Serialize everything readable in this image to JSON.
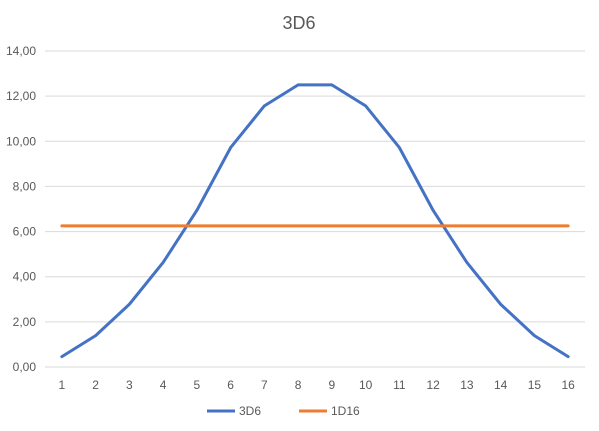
{
  "chart_data": {
    "type": "line",
    "title": "3D6",
    "xlabel": "",
    "ylabel": "",
    "categories": [
      "1",
      "2",
      "3",
      "4",
      "5",
      "6",
      "7",
      "8",
      "9",
      "10",
      "11",
      "12",
      "13",
      "14",
      "15",
      "16"
    ],
    "ylim": [
      0,
      14
    ],
    "yticks": [
      "0,00",
      "2,00",
      "4,00",
      "6,00",
      "8,00",
      "10,00",
      "12,00",
      "14,00"
    ],
    "grid": true,
    "legend_position": "bottom",
    "series": [
      {
        "name": "3D6",
        "color": "#4472C4",
        "values": [
          0.46,
          1.39,
          2.78,
          4.63,
          6.94,
          9.72,
          11.57,
          12.5,
          12.5,
          11.57,
          9.72,
          6.94,
          4.63,
          2.78,
          1.39,
          0.46
        ]
      },
      {
        "name": "1D16",
        "color": "#ED7D31",
        "values": [
          6.25,
          6.25,
          6.25,
          6.25,
          6.25,
          6.25,
          6.25,
          6.25,
          6.25,
          6.25,
          6.25,
          6.25,
          6.25,
          6.25,
          6.25,
          6.25
        ]
      }
    ]
  }
}
